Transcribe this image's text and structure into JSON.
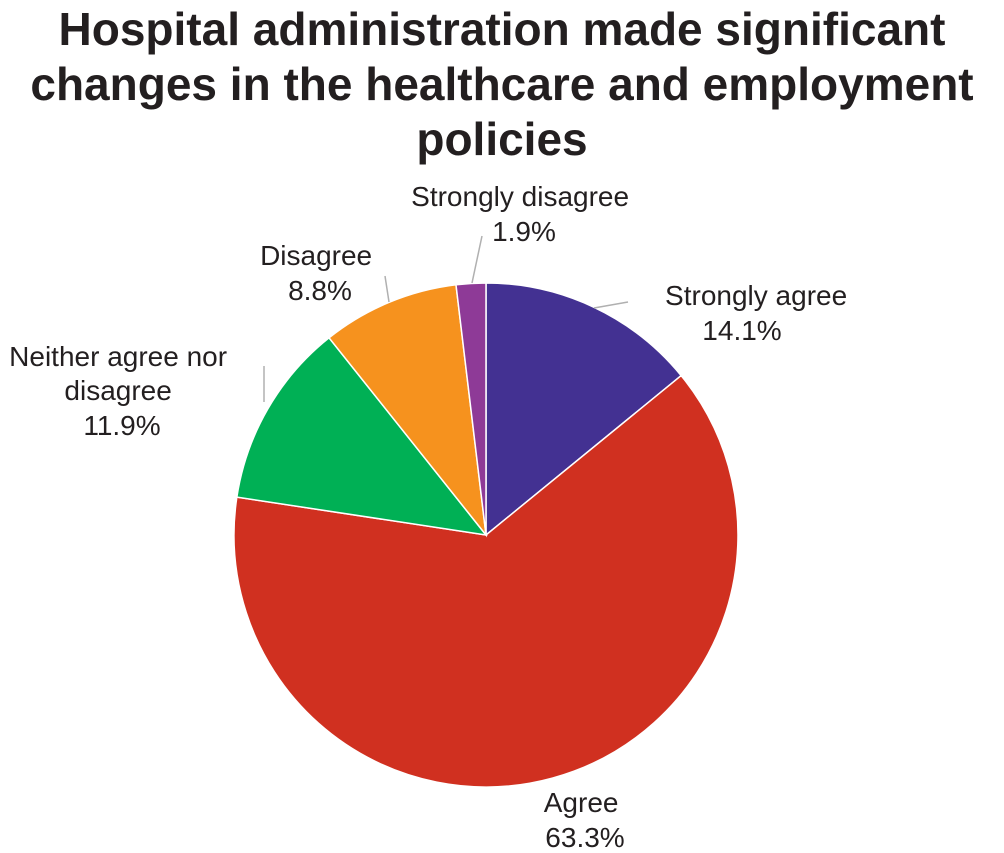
{
  "chart_data": {
    "type": "pie",
    "title_lines": [
      "Hospital administration made significant",
      "changes in the healthcare and employment",
      "policies"
    ],
    "slices": [
      {
        "label": "Strongly agree",
        "value": 14.1,
        "value_label": "14.1%",
        "color": "#433192"
      },
      {
        "label": "Agree",
        "value": 63.3,
        "value_label": "63.3%",
        "color": "#d03020"
      },
      {
        "label": "Neither agree nor disagree",
        "label_lines": [
          "Neither agree nor",
          "disagree"
        ],
        "value": 11.9,
        "value_label": "11.9%",
        "color": "#00b055"
      },
      {
        "label": "Disagree",
        "value": 8.8,
        "value_label": "8.8%",
        "color": "#f6921e"
      },
      {
        "label": "Strongly disagree",
        "value": 1.9,
        "value_label": "1.9%",
        "color": "#8e3a97"
      }
    ],
    "start_angle": "12 o'clock",
    "direction": "clockwise",
    "legend": "none"
  }
}
